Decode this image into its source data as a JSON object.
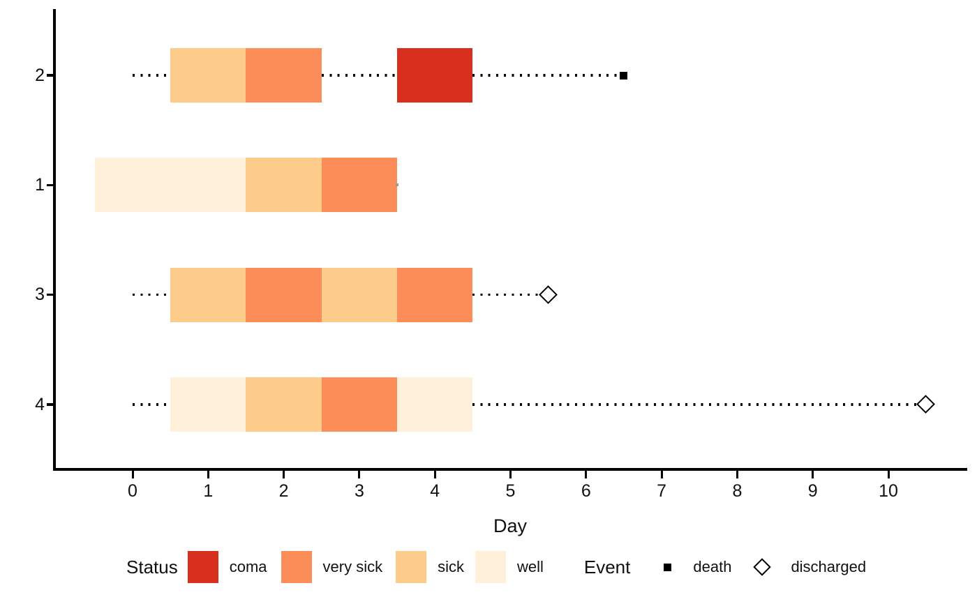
{
  "chart_data": {
    "type": "timeline-tiles",
    "title": "",
    "xlabel": "Day",
    "x_ticks": [
      "0",
      "1",
      "2",
      "3",
      "4",
      "5",
      "6",
      "7",
      "8",
      "9",
      "10"
    ],
    "x_range_days": [
      -1.05,
      11.05
    ],
    "grid": false,
    "background": "#ffffff",
    "status_colors": {
      "coma": "#D7301F",
      "very sick": "#FC8D59",
      "sick": "#FDCC8A",
      "well": "#FEF0D9"
    },
    "gap_line_color": "#000000",
    "censor_dot_color": "#999999",
    "patients": [
      {
        "id": "2",
        "tiles": [
          {
            "day": 1,
            "status": "sick"
          },
          {
            "day": 2,
            "status": "very sick"
          },
          {
            "day": 4,
            "status": "coma"
          }
        ],
        "gaps": [
          [
            0,
            0.5
          ],
          [
            2.5,
            3.5
          ],
          [
            4.5,
            6.42
          ]
        ],
        "event": {
          "type": "death",
          "day": 6.5
        }
      },
      {
        "id": "1",
        "tiles": [
          {
            "day": 0,
            "status": "well"
          },
          {
            "day": 1,
            "status": "well"
          },
          {
            "day": 2,
            "status": "sick"
          },
          {
            "day": 3,
            "status": "very sick"
          }
        ],
        "gaps": [],
        "censor_dot_day": 3.5,
        "event": null
      },
      {
        "id": "3",
        "tiles": [
          {
            "day": 1,
            "status": "sick"
          },
          {
            "day": 2,
            "status": "very sick"
          },
          {
            "day": 3,
            "status": "sick"
          },
          {
            "day": 4,
            "status": "very sick"
          }
        ],
        "gaps": [
          [
            0,
            0.5
          ],
          [
            4.5,
            5.43
          ]
        ],
        "event": {
          "type": "discharged",
          "day": 5.5
        }
      },
      {
        "id": "4",
        "tiles": [
          {
            "day": 1,
            "status": "well"
          },
          {
            "day": 2,
            "status": "sick"
          },
          {
            "day": 3,
            "status": "very sick"
          },
          {
            "day": 4,
            "status": "well"
          }
        ],
        "gaps": [
          [
            0,
            0.5
          ],
          [
            4.5,
            10.41
          ]
        ],
        "event": {
          "type": "discharged",
          "day": 10.5
        }
      }
    ],
    "legend": {
      "status_title": "Status",
      "status_items": [
        {
          "label": "coma",
          "color": "#D7301F"
        },
        {
          "label": "very sick",
          "color": "#FC8D59"
        },
        {
          "label": "sick",
          "color": "#FDCC8A"
        },
        {
          "label": "well",
          "color": "#FEF0D9"
        }
      ],
      "event_title": "Event",
      "event_items": [
        {
          "label": "death",
          "marker": "filled-square"
        },
        {
          "label": "discharged",
          "marker": "open-diamond"
        }
      ]
    }
  }
}
